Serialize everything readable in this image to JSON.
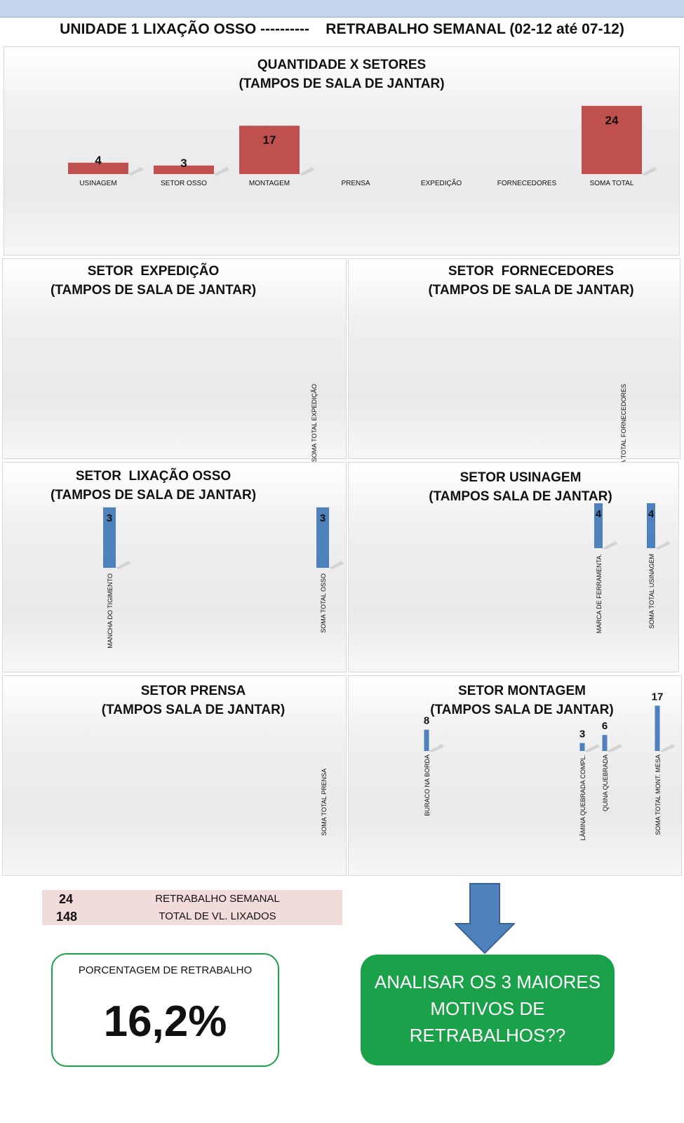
{
  "header": {
    "title": "UNIDADE 1 LIXAÇÃO OSSO ----------    RETRABALHO SEMANAL (02-12 até 07-12)"
  },
  "colors": {
    "red_bar": "#c0504d",
    "blue_bar": "#4f81bd",
    "green": "#1aa14a",
    "pink": "#f2dcdb"
  },
  "chart_data": [
    {
      "id": "setores",
      "type": "bar",
      "title": "QUANTIDADE X SETORES",
      "subtitle": "(TAMPOS DE SALA DE JANTAR)",
      "categories": [
        "USINAGEM",
        "SETOR OSSO",
        "MONTAGEM",
        "PRENSA",
        "EXPEDIÇÃO",
        "FORNECEDORES",
        "SOMA TOTAL"
      ],
      "values": [
        4,
        3,
        17,
        null,
        null,
        null,
        24
      ],
      "color": "#c0504d"
    },
    {
      "id": "expedicao",
      "type": "bar",
      "title": "SETOR  EXPEDIÇÃO",
      "subtitle": "(TAMPOS DE SALA DE JANTAR)",
      "categories": [
        "SOMA TOTAL EXPEDIÇÃO"
      ],
      "values": [
        null
      ],
      "color": "#4f81bd"
    },
    {
      "id": "fornecedores",
      "type": "bar",
      "title": "SETOR  FORNECEDORES",
      "subtitle": "(TAMPOS DE SALA DE JANTAR)",
      "categories": [
        "SOMA TOTAL FORNECEDORES"
      ],
      "values": [
        null
      ],
      "color": "#4f81bd"
    },
    {
      "id": "lixacao",
      "type": "bar",
      "title": "SETOR  LIXAÇÃO OSSO",
      "subtitle": "(TAMPOS DE SALA DE JANTAR)",
      "categories": [
        "MANCHA DO TIGIMENTO",
        "SOMA TOTAL OSSO"
      ],
      "values": [
        3,
        3
      ],
      "color": "#4f81bd"
    },
    {
      "id": "usinagem",
      "type": "bar",
      "title": "SETOR USINAGEM",
      "subtitle": "(TAMPOS SALA DE JANTAR)",
      "categories": [
        "MARCA DE FERRAMENTA.",
        "SOMA TOTAL USINAGEM"
      ],
      "values": [
        4,
        4
      ],
      "color": "#4f81bd"
    },
    {
      "id": "prensa",
      "type": "bar",
      "title": "SETOR PRENSA",
      "subtitle": "(TAMPOS SALA DE JANTAR)",
      "categories": [
        "SOMA TOTAL PRENSA"
      ],
      "values": [
        null
      ],
      "color": "#4f81bd"
    },
    {
      "id": "montagem",
      "type": "bar",
      "title": "SETOR MONTAGEM",
      "subtitle": "(TAMPOS SALA DE JANTAR)",
      "categories": [
        "BURACO NA BORDA",
        "LÂMINA QUEBRADA COMPL.",
        "QUINA QUEBRADA",
        "SOMA TOTAL MONT. MESA"
      ],
      "values": [
        8,
        3,
        6,
        17
      ],
      "color": "#4f81bd"
    }
  ],
  "summary": {
    "weekly_rework": {
      "value": "24",
      "label": "RETRABALHO SEMANAL"
    },
    "total_sanded": {
      "value": "148",
      "label": "TOTAL DE VL. LIXADOS"
    }
  },
  "percentage": {
    "title": "PORCENTAGEM DE RETRABALHO",
    "value": "16,2%"
  },
  "callout": {
    "line1": "ANALISAR OS 3 MAIORES",
    "line2": "MOTIVOS DE",
    "line3": "RETRABALHOS??"
  }
}
